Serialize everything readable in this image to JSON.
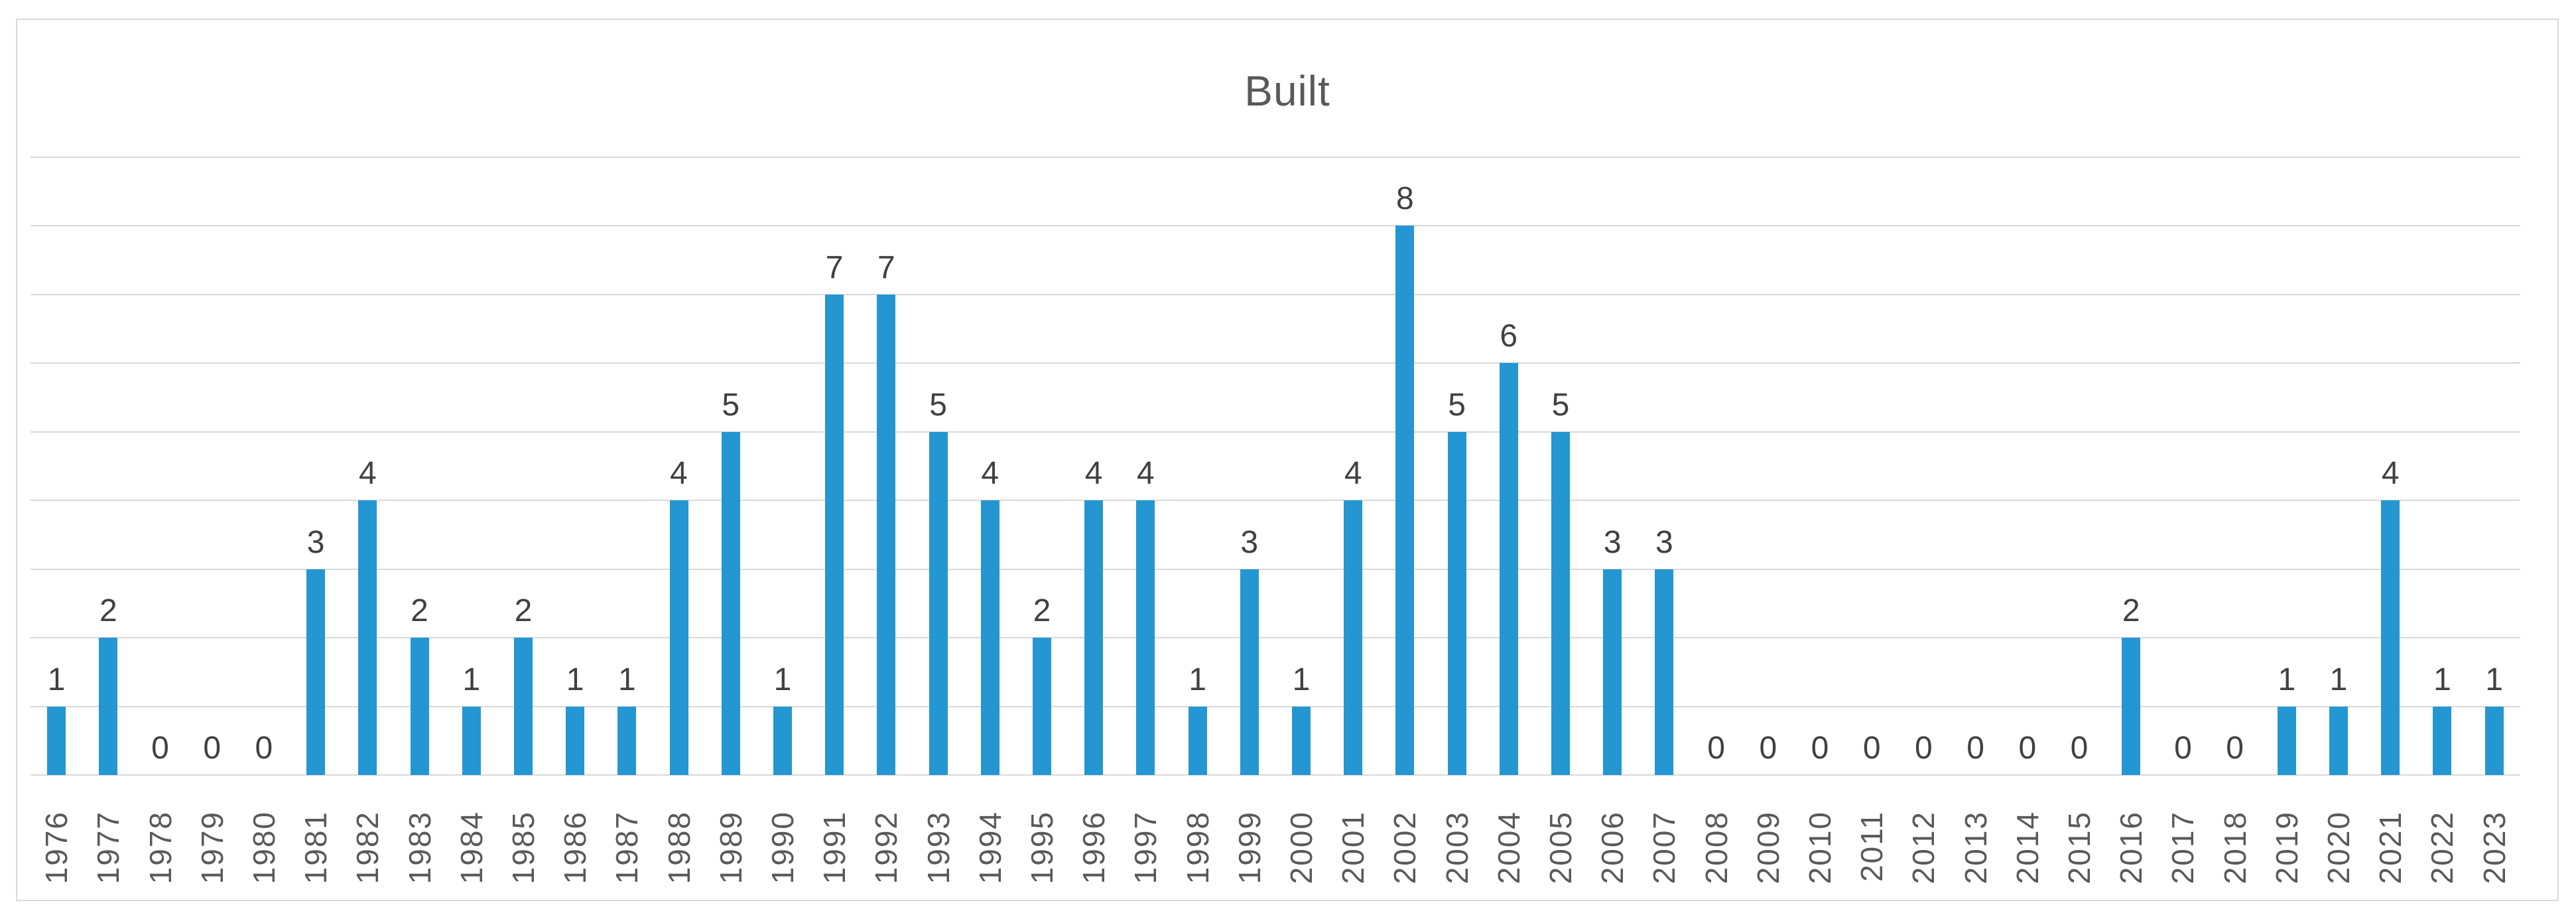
{
  "chart_data": {
    "type": "bar",
    "title": "Built",
    "categories": [
      "1976",
      "1977",
      "1978",
      "1979",
      "1980",
      "1981",
      "1982",
      "1983",
      "1984",
      "1985",
      "1986",
      "1987",
      "1988",
      "1989",
      "1990",
      "1991",
      "1992",
      "1993",
      "1994",
      "1995",
      "1996",
      "1997",
      "1998",
      "1999",
      "2000",
      "2001",
      "2002",
      "2003",
      "2004",
      "2005",
      "2006",
      "2007",
      "2008",
      "2009",
      "2010",
      "2011",
      "2012",
      "2013",
      "2014",
      "2015",
      "2016",
      "2017",
      "2018",
      "2019",
      "2020",
      "2021",
      "2022",
      "2023"
    ],
    "values": [
      1,
      2,
      0,
      0,
      0,
      3,
      4,
      2,
      1,
      2,
      1,
      1,
      4,
      5,
      1,
      7,
      7,
      5,
      4,
      2,
      4,
      4,
      1,
      3,
      1,
      4,
      8,
      5,
      6,
      5,
      3,
      3,
      0,
      0,
      0,
      0,
      0,
      0,
      0,
      0,
      2,
      0,
      0,
      1,
      1,
      4,
      1,
      1
    ],
    "data_labels_shown": true,
    "xlabel": "",
    "ylabel": "",
    "y_axis_labels_shown": false,
    "ylim": [
      0,
      9
    ],
    "gridline_interval": 1,
    "grid": "on",
    "legend_position": "none"
  },
  "colors": {
    "bar": "#2496D2",
    "gridline": "#D9D9D9",
    "frame_border": "#D9D9D9",
    "title_text": "#595959",
    "axis_label_text": "#595959",
    "data_label_text": "#404040",
    "background": "#FFFFFF"
  }
}
